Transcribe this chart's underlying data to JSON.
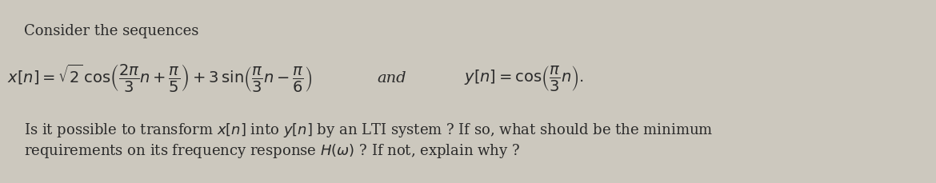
{
  "bg_color": "#ccc8be",
  "text_color": "#2a2a2a",
  "title_line": "Consider the sequences",
  "title_fontsize": 13.0,
  "eq_fontsize": 14.0,
  "body_fontsize": 13.0
}
